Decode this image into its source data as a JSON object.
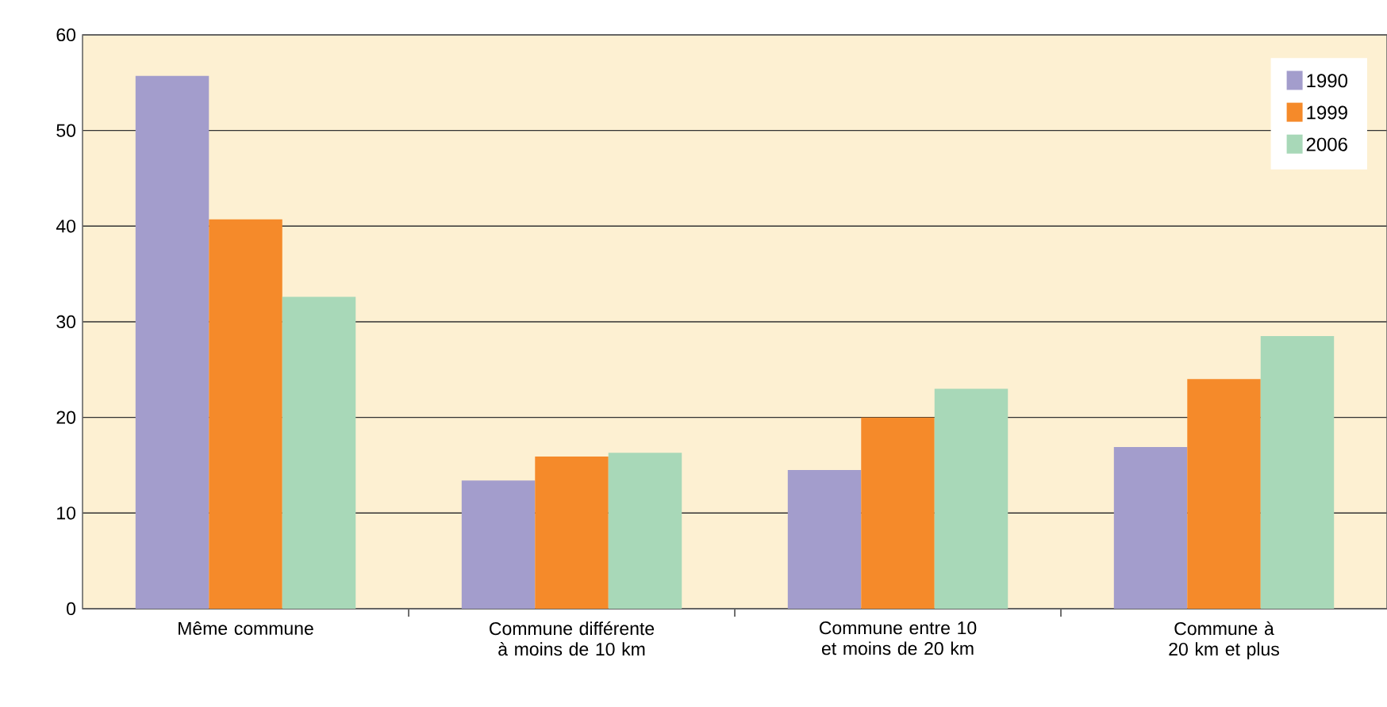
{
  "chart_data": {
    "type": "bar",
    "categories": [
      "Même commune",
      "Commune différente à moins de 10 km",
      "Commune entre 10 et moins de 20 km",
      "Commune à 20 km et plus"
    ],
    "series": [
      {
        "name": "1990",
        "color": "#a39dcc",
        "values": [
          55.7,
          13.4,
          14.5,
          16.9
        ]
      },
      {
        "name": "1999",
        "color": "#f58a2a",
        "values": [
          40.7,
          15.9,
          20.0,
          24.0
        ]
      },
      {
        "name": "2006",
        "color": "#a8d8b8",
        "values": [
          32.6,
          16.3,
          23.0,
          28.5
        ]
      }
    ],
    "ylim": [
      0,
      60
    ],
    "yticks": [
      0,
      10,
      20,
      30,
      40,
      50,
      60
    ],
    "grid": "y",
    "legend": "top right"
  }
}
